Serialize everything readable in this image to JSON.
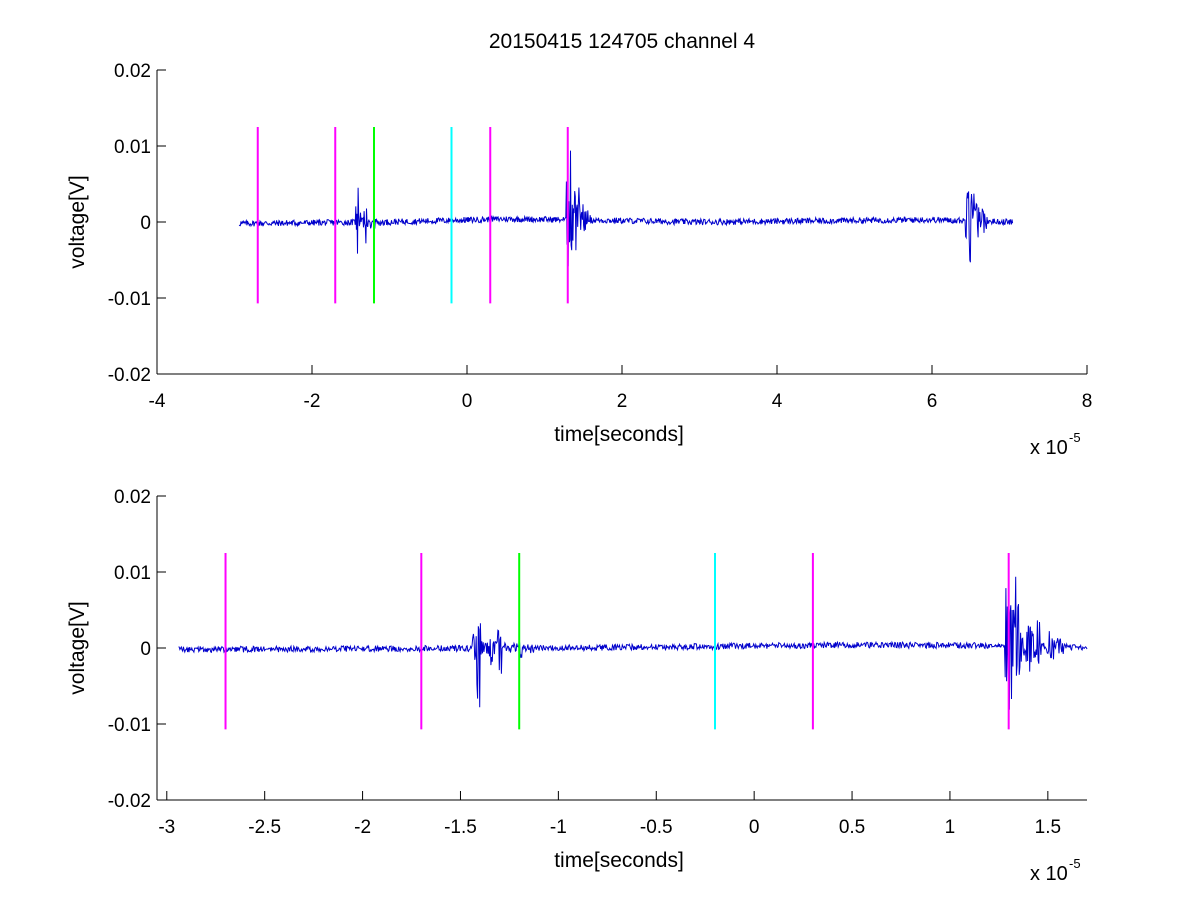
{
  "figure": {
    "title": "20150415 124705 channel 4"
  },
  "chart_data": [
    {
      "type": "line",
      "title": "20150415 124705 channel 4",
      "xlabel": "time[seconds]",
      "ylabel": "voltage[V]",
      "x_multiplier_label": "x 10",
      "x_multiplier_exp": "-5",
      "xlim": [
        -4,
        8
      ],
      "ylim": [
        -0.02,
        0.02
      ],
      "xticks": [
        -4,
        -2,
        0,
        2,
        4,
        6,
        8
      ],
      "xtick_labels": [
        "-4",
        "-2",
        "0",
        "2",
        "4",
        "6",
        "8"
      ],
      "yticks": [
        0.02,
        0.01,
        0,
        -0.01,
        -0.02
      ],
      "ytick_labels": [
        "0.02",
        "0.01",
        "0",
        "-0.01",
        "-0.02"
      ],
      "grid": false,
      "signal": {
        "color": "#0000cc",
        "x_range": [
          -2.94,
          7.04
        ],
        "noise_amplitude": 0.0004,
        "baseline": [
          [
            -2.94,
            -0.0002
          ],
          [
            -1.0,
            0.0
          ],
          [
            0.5,
            0.0004
          ],
          [
            1.3,
            0.0003
          ],
          [
            3.0,
            0.0
          ],
          [
            6.0,
            0.0003
          ],
          [
            7.04,
            0.0
          ]
        ],
        "bursts": [
          {
            "x": -1.42,
            "amps": [
              0.0022,
              -0.0078,
              0.0015,
              0.0012,
              -0.003
            ]
          },
          {
            "x": 1.3,
            "amps": [
              0.0085,
              -0.0088,
              0.006,
              0.0112,
              -0.005,
              0.003
            ]
          },
          {
            "x": 6.45,
            "amps": [
              0.0072,
              -0.0098,
              0.005,
              -0.0075,
              0.0052,
              -0.003
            ]
          }
        ]
      },
      "markers": [
        {
          "x": -2.7,
          "color": "#ff00ff"
        },
        {
          "x": -1.7,
          "color": "#ff00ff"
        },
        {
          "x": -1.2,
          "color": "#00ff00"
        },
        {
          "x": -0.2,
          "color": "#00ffff"
        },
        {
          "x": 0.3,
          "color": "#ff00ff"
        },
        {
          "x": 1.3,
          "color": "#ff00ff"
        }
      ],
      "marker_range": [
        -0.0107,
        0.0125
      ]
    },
    {
      "type": "line",
      "title": "",
      "xlabel": "time[seconds]",
      "ylabel": "voltage[V]",
      "x_multiplier_label": "x 10",
      "x_multiplier_exp": "-5",
      "xlim": [
        -3.05,
        1.7
      ],
      "ylim": [
        -0.02,
        0.02
      ],
      "xticks": [
        -3,
        -2.5,
        -2,
        -1.5,
        -1,
        -0.5,
        0,
        0.5,
        1,
        1.5
      ],
      "xtick_labels": [
        "-3",
        "-2.5",
        "-2",
        "-1.5",
        "-1",
        "-0.5",
        "0",
        "0.5",
        "1",
        "1.5"
      ],
      "yticks": [
        0.02,
        0.01,
        0,
        -0.01,
        -0.02
      ],
      "ytick_labels": [
        "0.02",
        "0.01",
        "0",
        "-0.01",
        "-0.02"
      ],
      "grid": false,
      "signal": {
        "color": "#0000cc",
        "x_range": [
          -2.94,
          1.7
        ],
        "noise_amplitude": 0.0004,
        "baseline": [
          [
            -2.94,
            -0.0002
          ],
          [
            -1.0,
            0.0
          ],
          [
            0.5,
            0.0004
          ],
          [
            1.3,
            0.0003
          ],
          [
            1.7,
            0.0
          ]
        ],
        "bursts": [
          {
            "x": -1.42,
            "amps": [
              0.0022,
              -0.0078,
              0.0015,
              0.0012,
              -0.003
            ]
          },
          {
            "x": 1.3,
            "amps": [
              0.0085,
              -0.0088,
              0.006,
              0.0112,
              -0.005,
              0.003
            ]
          }
        ]
      },
      "markers": [
        {
          "x": -2.7,
          "color": "#ff00ff"
        },
        {
          "x": -1.7,
          "color": "#ff00ff"
        },
        {
          "x": -1.2,
          "color": "#00ff00"
        },
        {
          "x": -0.2,
          "color": "#00ffff"
        },
        {
          "x": 0.3,
          "color": "#ff00ff"
        },
        {
          "x": 1.3,
          "color": "#ff00ff"
        }
      ],
      "marker_range": [
        -0.0107,
        0.0125
      ]
    }
  ]
}
